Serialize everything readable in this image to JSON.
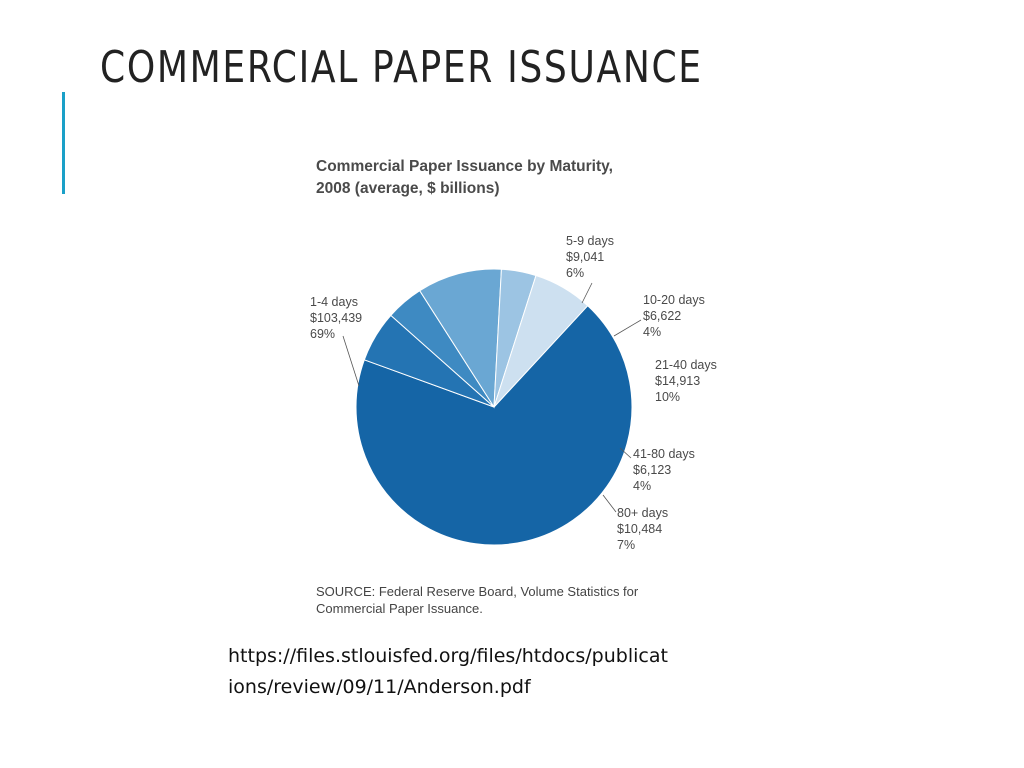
{
  "slide": {
    "title": "COMMERCIAL PAPER ISSUANCE",
    "url_line1": "https://files.stlouisfed.org/files/htdocs/publicat",
    "url_line2": "ions/review/09/11/Anderson.pdf"
  },
  "colors": {
    "accent": "#1aa0c8",
    "title_text": "#222222",
    "chart_text": "#4a4a4a"
  },
  "chart_data": {
    "type": "pie",
    "title_line1": "Commercial Paper Issuance by Maturity,",
    "title_line2": "2008 (average, $ billions)",
    "source_line1": "SOURCE: Federal Reserve Board, Volume Statistics for",
    "source_line2": "Commercial Paper Issuance.",
    "slices": [
      {
        "category": "1-4 days",
        "value": 103439,
        "value_label": "$103,439",
        "percent_label": "69%",
        "color": "#1565a6"
      },
      {
        "category": "5-9 days",
        "value": 9041,
        "value_label": "$9,041",
        "percent_label": "6%",
        "color": "#2474b3"
      },
      {
        "category": "10-20 days",
        "value": 6622,
        "value_label": "$6,622",
        "percent_label": "4%",
        "color": "#3e8ac2"
      },
      {
        "category": "21-40 days",
        "value": 14913,
        "value_label": "$14,913",
        "percent_label": "10%",
        "color": "#6aa7d3"
      },
      {
        "category": "41-80 days",
        "value": 6123,
        "value_label": "$6,123",
        "percent_label": "4%",
        "color": "#9cc4e3"
      },
      {
        "category": "80+ days",
        "value": 10484,
        "value_label": "$10,484",
        "percent_label": "7%",
        "color": "#cde0f0"
      }
    ]
  }
}
